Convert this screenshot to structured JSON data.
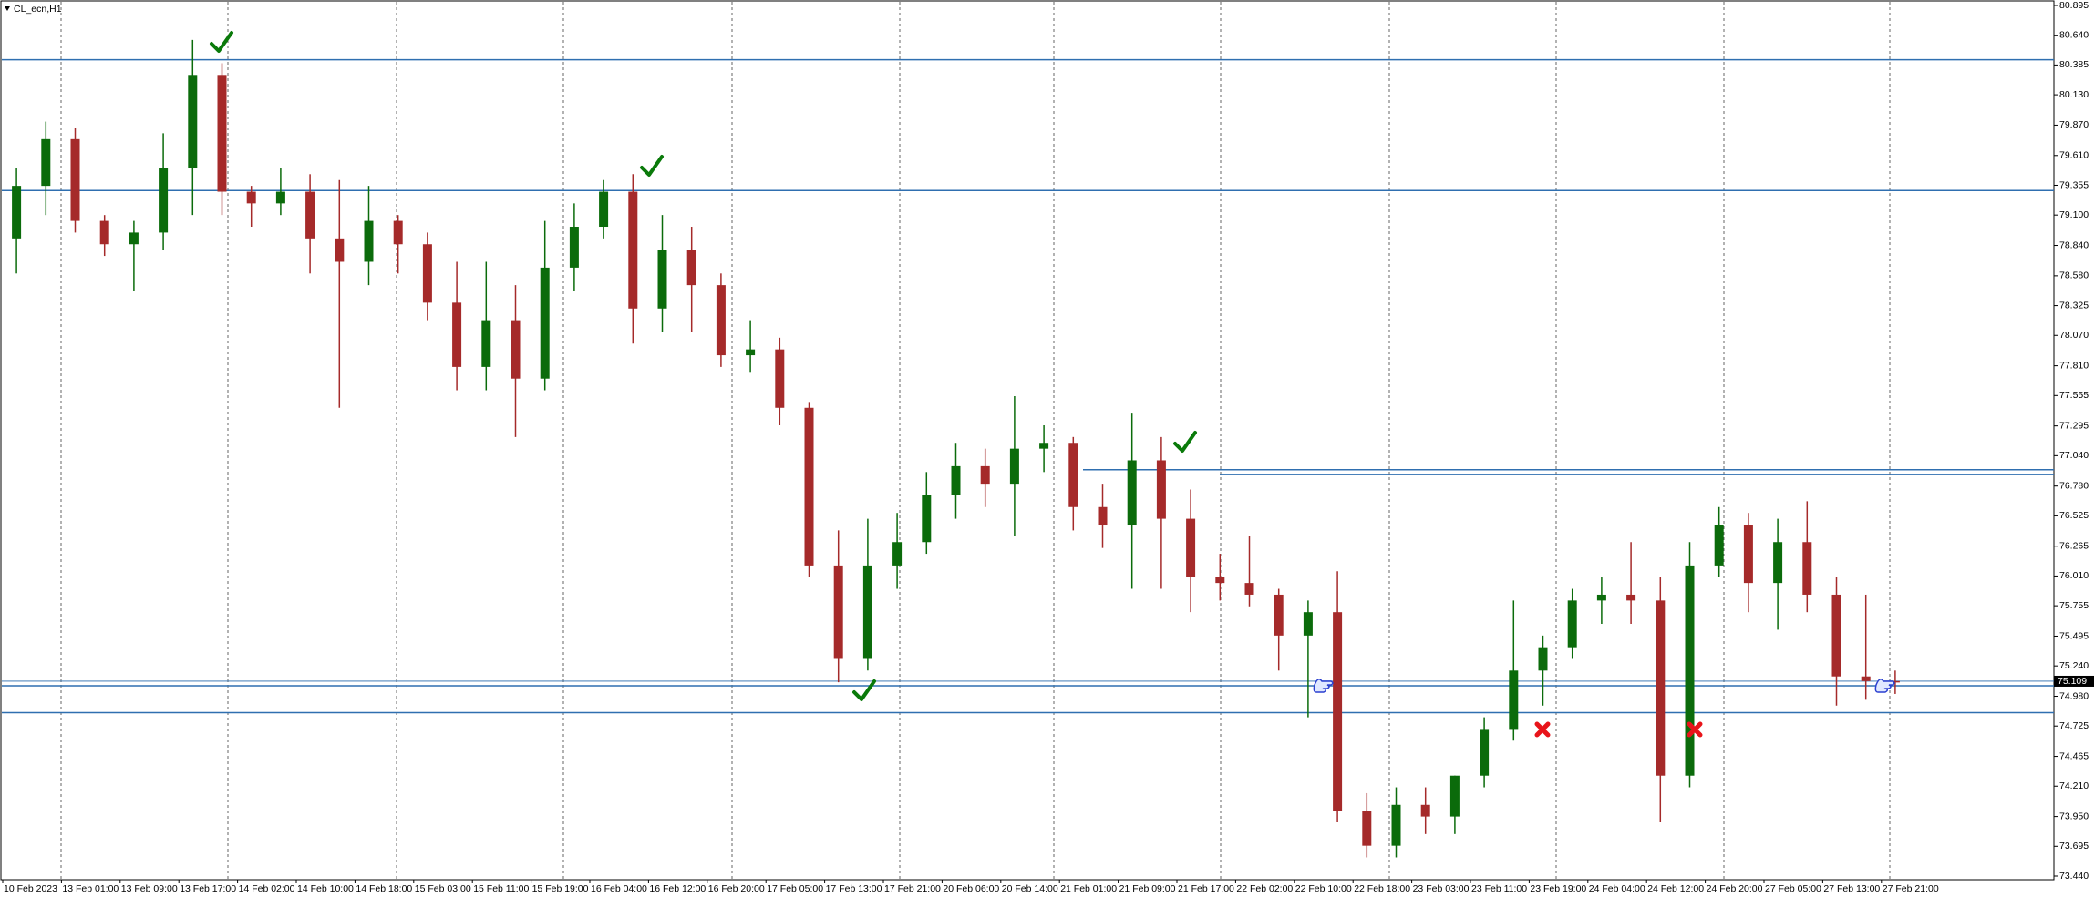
{
  "chart_data": {
    "type": "candlestick",
    "title": "CL_ecn,H1",
    "categories": [
      "10 Feb 2023",
      null,
      "13 Feb 01:00",
      null,
      "13 Feb 09:00",
      null,
      "13 Feb 17:00",
      null,
      "14 Feb 02:00",
      null,
      "14 Feb 10:00",
      null,
      "14 Feb 18:00",
      null,
      "15 Feb 03:00",
      null,
      "15 Feb 11:00",
      null,
      "15 Feb 19:00",
      null,
      "16 Feb 04:00",
      null,
      "16 Feb 12:00",
      null,
      "16 Feb 20:00",
      null,
      "17 Feb 05:00",
      null,
      "17 Feb 13:00",
      null,
      "17 Feb 21:00",
      null,
      "20 Feb 06:00",
      null,
      "20 Feb 14:00",
      null,
      "21 Feb 01:00",
      null,
      "21 Feb 09:00",
      null,
      "21 Feb 17:00",
      null,
      "22 Feb 02:00",
      null,
      "22 Feb 10:00",
      null,
      "22 Feb 18:00",
      null,
      "23 Feb 03:00",
      null,
      "23 Feb 11:00",
      null,
      "23 Feb 19:00",
      null,
      "24 Feb 04:00",
      null,
      "24 Feb 12:00",
      null,
      "24 Feb 20:00",
      null,
      "27 Feb 05:00",
      null,
      "27 Feb 13:00",
      null,
      "27 Feb 21:00"
    ],
    "open": [
      78.9,
      79.35,
      79.75,
      79.05,
      78.85,
      78.95,
      79.5,
      80.3,
      79.3,
      79.2,
      79.3,
      78.9,
      78.7,
      79.05,
      78.85,
      78.35,
      77.8,
      78.2,
      77.7,
      78.65,
      79.0,
      79.3,
      78.3,
      78.8,
      78.5,
      77.9,
      77.95,
      77.45,
      76.1,
      75.3,
      76.1,
      76.3,
      76.7,
      76.95,
      76.8,
      77.1,
      77.15,
      76.6,
      76.45,
      77.0,
      76.5,
      76.0,
      75.95,
      75.85,
      75.5,
      75.7,
      74.0,
      73.7,
      74.05,
      73.95,
      74.3,
      74.7,
      75.2,
      75.4,
      75.8,
      75.85,
      75.8,
      74.3,
      76.1,
      76.45,
      75.95,
      76.3,
      75.85,
      75.15,
      75.11
    ],
    "high": [
      79.5,
      79.9,
      79.85,
      79.1,
      79.05,
      79.8,
      80.6,
      80.4,
      79.35,
      79.5,
      79.45,
      79.4,
      79.35,
      79.1,
      78.95,
      78.7,
      78.7,
      78.5,
      79.05,
      79.2,
      79.4,
      79.45,
      79.1,
      79.0,
      78.6,
      78.2,
      78.05,
      77.5,
      76.4,
      76.5,
      76.55,
      76.9,
      77.15,
      77.1,
      77.55,
      77.3,
      77.2,
      76.8,
      77.4,
      77.2,
      76.75,
      76.2,
      76.35,
      75.9,
      75.8,
      76.05,
      74.15,
      74.2,
      74.2,
      74.3,
      74.8,
      75.8,
      75.5,
      75.9,
      76.0,
      76.3,
      76.0,
      76.3,
      76.6,
      76.55,
      76.5,
      76.65,
      76.0,
      75.85,
      75.2
    ],
    "low": [
      78.6,
      79.1,
      78.95,
      78.75,
      78.45,
      78.8,
      79.1,
      79.1,
      79.0,
      79.1,
      78.6,
      77.45,
      78.5,
      78.6,
      78.2,
      77.6,
      77.6,
      77.2,
      77.6,
      78.45,
      78.9,
      78.0,
      78.1,
      78.1,
      77.8,
      77.75,
      77.3,
      76.0,
      75.1,
      75.2,
      75.9,
      76.2,
      76.5,
      76.6,
      76.35,
      76.9,
      76.4,
      76.25,
      75.9,
      75.9,
      75.7,
      75.8,
      75.75,
      75.2,
      74.8,
      73.9,
      73.6,
      73.6,
      73.8,
      73.8,
      74.2,
      74.6,
      74.9,
      75.3,
      75.6,
      75.6,
      73.9,
      74.2,
      76.0,
      75.7,
      75.55,
      75.7,
      74.9,
      74.95,
      75.0
    ],
    "close": [
      79.35,
      79.75,
      79.05,
      78.85,
      78.95,
      79.5,
      80.3,
      79.3,
      79.2,
      79.3,
      78.9,
      78.7,
      79.05,
      78.85,
      78.35,
      77.8,
      78.2,
      77.7,
      78.65,
      79.0,
      79.3,
      78.3,
      78.8,
      78.5,
      77.9,
      77.95,
      77.45,
      76.1,
      75.3,
      76.1,
      76.3,
      76.7,
      76.95,
      76.8,
      77.1,
      77.15,
      76.6,
      76.45,
      77.0,
      76.5,
      76.0,
      75.95,
      75.85,
      75.5,
      75.7,
      74.0,
      73.7,
      74.05,
      73.95,
      74.3,
      74.7,
      75.2,
      75.4,
      75.8,
      75.85,
      75.8,
      74.3,
      76.1,
      76.45,
      75.95,
      76.3,
      75.85,
      75.15,
      75.11,
      75.109
    ],
    "up_color": "#0b6b0b",
    "down_color": "#a52a2a",
    "level_color": "#2f6fb0",
    "levels": [
      80.43,
      79.31,
      76.92,
      76.88,
      75.11,
      75.07,
      74.84
    ],
    "current_price": 75.109,
    "ylim": [
      73.44,
      80.895
    ],
    "yticks": [
      80.895,
      {
        "value": 80.64,
        "label": "80.640"
      },
      80.385,
      {
        "value": 80.13,
        "label": "80.130"
      },
      {
        "value": 79.87,
        "label": "79.870"
      },
      {
        "value": 79.61,
        "label": "79.610"
      },
      79.355,
      {
        "value": 79.1,
        "label": "79.100"
      },
      {
        "value": 78.84,
        "label": "78.840"
      },
      {
        "value": 78.58,
        "label": "78.580"
      },
      78.325,
      {
        "value": 78.07,
        "label": "78.070"
      },
      {
        "value": 77.81,
        "label": "77.810"
      },
      77.555,
      77.295,
      {
        "value": 77.04,
        "label": "77.040"
      },
      {
        "value": 76.78,
        "label": "76.780"
      },
      76.525,
      76.265,
      {
        "value": 76.01,
        "label": "76.010"
      },
      75.755,
      75.495,
      {
        "value": 75.24,
        "label": "75.240"
      },
      {
        "value": 74.98,
        "label": "74.980"
      },
      74.725,
      74.465,
      {
        "value": 74.21,
        "label": "74.210"
      },
      {
        "value": 73.95,
        "label": "73.950"
      },
      73.695,
      {
        "value": 73.44,
        "label": "73.440"
      }
    ],
    "grid": true
  }
}
